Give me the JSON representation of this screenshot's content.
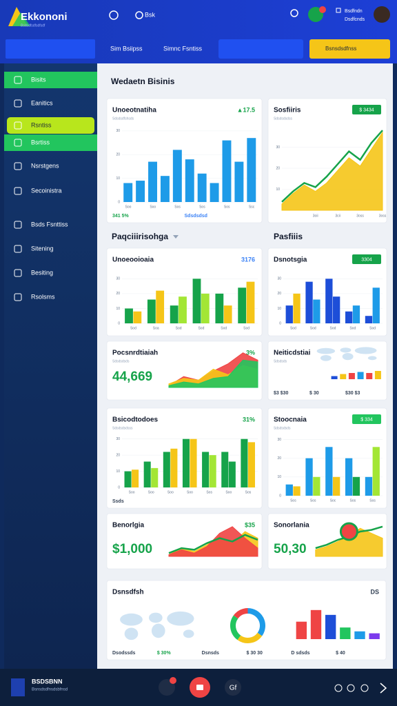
{
  "header": {
    "logo": "Ekkononi",
    "tagline": "Bsdsdfsdfsdfsdf",
    "search_hint": "Bsk",
    "nav": [
      "Sim Bsiipss",
      "Simnc Fsntiss"
    ],
    "button": "Bsnsdsdfnss",
    "user": [
      "Bsdfndn",
      "Dsdfcnds"
    ]
  },
  "sidebar": [
    {
      "label": "Bisits",
      "highlight": "#22c55e"
    },
    {
      "label": "Eanitics"
    },
    {
      "label": "Rsntiss",
      "highlight": "#b8e61c"
    },
    {
      "label": "Bsrtiss",
      "highlight": "#22c55e"
    },
    {
      "label": "Nsrstgens"
    },
    {
      "label": "Secoinistra"
    },
    {
      "label": "Bsds Fsnttiss"
    },
    {
      "label": "Sitening"
    },
    {
      "label": "Besiting"
    },
    {
      "label": "Rsolsms"
    }
  ],
  "main_title": "Wedaetn Bisinis",
  "sections": [
    "Paqciiirisohga",
    "Pasfiiis"
  ],
  "cards": [
    {
      "title": "Unoeotnatiha",
      "subtitle": "Sdsdsdfshsds",
      "badge": {
        "text": "▲17.5",
        "style": "text",
        "color": "#16a34a"
      },
      "charts": [
        {
          "type": "bar",
          "ylim": [
            0,
            32
          ],
          "yticks": [
            0,
            10,
            20,
            30
          ],
          "categories": [
            "Soo",
            null,
            "Soo",
            null,
            "Sos",
            null,
            "Sos",
            null,
            "Sos",
            null,
            "Ssc"
          ],
          "series": [
            {
              "colors": [
                "#1e9be8"
              ],
              "values": [
                8,
                9,
                17,
                11,
                22,
                18,
                12,
                8,
                26,
                17,
                27
              ]
            }
          ]
        }
      ],
      "footer": [
        {
          "text": "341 5%",
          "color": "#16a34a"
        },
        {
          "text": "Sdsdsdsd",
          "color": "#3b82f6"
        }
      ]
    },
    {
      "title": "Sosfiiris",
      "subtitle": "Sdsdsdsdss",
      "badge": {
        "text": "$ 3434",
        "style": "pill",
        "color": "#16a34a"
      },
      "charts": [
        {
          "type": "area",
          "ylim": [
            0,
            40
          ],
          "yticks": [
            10,
            20,
            30
          ],
          "categories": [
            null,
            null,
            null,
            "3oii",
            null,
            "3cii",
            null,
            "3oss",
            null,
            "3oss"
          ],
          "series": [
            {
              "style": "area",
              "color": "#f5c518",
              "values": [
                3,
                8,
                12,
                9,
                13,
                19,
                25,
                21,
                29,
                37
              ]
            },
            {
              "style": "line",
              "color": "#16a34a",
              "values": [
                4,
                9,
                13,
                11,
                16,
                22,
                28,
                24,
                32,
                38
              ]
            }
          ]
        }
      ]
    },
    {
      "title": "Unoeooioaia",
      "badge": {
        "text": "3176",
        "style": "text",
        "color": "#3b82f6"
      },
      "charts": [
        {
          "type": "bar",
          "ylim": [
            0,
            32
          ],
          "yticks": [
            0,
            10,
            20,
            30
          ],
          "categories": [
            "Sod",
            "Soa",
            "Sod",
            "Sod",
            "Sod",
            "Sod"
          ],
          "series": [
            {
              "colors": [
                "#16a34a"
              ],
              "values": [
                10,
                16,
                12,
                30,
                20,
                24
              ]
            },
            {
              "colors": [
                "#f5c518",
                "#f5c518",
                "#a3e635",
                "#a3e635",
                "#f5c518",
                "#f5c518"
              ],
              "values": [
                8,
                22,
                18,
                20,
                12,
                28
              ]
            }
          ]
        }
      ]
    },
    {
      "title": "Dsnotsgia",
      "badge": {
        "text": "3304",
        "style": "pill",
        "color": "#16a34a"
      },
      "charts": [
        {
          "type": "bar",
          "ylim": [
            0,
            32
          ],
          "yticks": [
            0,
            10,
            20,
            30
          ],
          "categories": [
            "Sod",
            "Sod",
            "Sod",
            "Sod",
            "Sod"
          ],
          "series": [
            {
              "colors": [
                "#1d4ed8"
              ],
              "values": [
                12,
                28,
                30,
                8,
                5
              ]
            },
            {
              "colors": [
                "#f5c518",
                "#1e9be8",
                "#1d4ed8",
                "#1e9be8",
                "#1e9be8"
              ],
              "values": [
                20,
                16,
                18,
                12,
                24
              ]
            }
          ]
        }
      ]
    },
    {
      "title": "Pocsnrdtiaiah",
      "subtitle": "Sdsdsdsds",
      "badge": {
        "text": "3%",
        "style": "text",
        "color": "#16a34a"
      },
      "value": "44,669",
      "charts": [
        {
          "type": "area",
          "ylim": [
            0,
            40
          ],
          "categories": [
            null,
            null,
            null,
            null,
            null,
            null,
            null
          ],
          "series": [
            {
              "style": "area",
              "color": "#ef4444",
              "values": [
                2,
                12,
                8,
                18,
                26,
                38,
                30
              ]
            },
            {
              "style": "area",
              "color": "#f5c518",
              "values": [
                4,
                10,
                8,
                20,
                14,
                24,
                20
              ]
            },
            {
              "style": "area",
              "color": "#22c55e",
              "values": [
                2,
                6,
                4,
                10,
                12,
                30,
                28
              ]
            }
          ]
        }
      ]
    },
    {
      "title": "Neiticdstiai",
      "subtitle": "Sdsdsds",
      "charts": [
        {
          "type": "map"
        },
        {
          "type": "bar",
          "ylim": [
            0,
            20
          ],
          "categories": [
            null,
            null,
            null,
            null,
            null,
            null
          ],
          "series": [
            {
              "colors": [
                "#1d4ed8",
                "#f5c518",
                "#ef4444",
                "#1e9be8",
                "#ef4444",
                "#f5c518"
              ],
              "values": [
                6,
                10,
                12,
                14,
                12,
                16
              ]
            }
          ]
        }
      ],
      "footer": [
        {
          "text": "$3 $30",
          "color": "#334155"
        },
        {
          "text": "$ 30",
          "color": "#334155"
        },
        {
          "text": "$30 $3",
          "color": "#334155"
        }
      ]
    },
    {
      "title": "Bsicodtodoes",
      "subtitle": "Sdsdsdsdsss",
      "badge": {
        "text": "31%",
        "style": "text",
        "color": "#16a34a"
      },
      "charts": [
        {
          "type": "bar",
          "ylim": [
            0,
            32
          ],
          "yticks": [
            0,
            10,
            20,
            30
          ],
          "categories": [
            "Soo",
            "Soo",
            "Soo",
            "Soo",
            "Sos",
            "Soo",
            "Sos"
          ],
          "series": [
            {
              "colors": [
                "#16a34a"
              ],
              "values": [
                10,
                16,
                22,
                30,
                22,
                22,
                30
              ]
            },
            {
              "colors": [
                "#f5c518",
                "#a3e635",
                "#f5c518",
                "#f5c518",
                "#a3e635",
                "#16a34a",
                "#f5c518"
              ],
              "values": [
                11,
                12,
                24,
                30,
                20,
                16,
                28
              ]
            }
          ]
        }
      ],
      "footer": [
        {
          "text": "Ssds",
          "color": "#334155"
        }
      ]
    },
    {
      "title": "Stoocnaia",
      "subtitle": "Sdsdsdsds",
      "badge": {
        "text": "$ 334",
        "style": "pill",
        "color": "#22c55e"
      },
      "charts": [
        {
          "type": "bar",
          "ylim": [
            0,
            32
          ],
          "yticks": [
            0,
            10,
            20,
            30
          ],
          "categories": [
            "Sos",
            "Sos",
            "Soc",
            "Sos",
            "Sos"
          ],
          "series": [
            {
              "colors": [
                "#1e9be8"
              ],
              "values": [
                6,
                20,
                26,
                20,
                10
              ]
            },
            {
              "colors": [
                "#f5c518",
                "#a3e635",
                "#f5c518",
                "#16a34a",
                "#a3e635"
              ],
              "values": [
                5,
                10,
                10,
                10,
                26
              ]
            }
          ]
        }
      ]
    },
    {
      "title": "Benorlgia",
      "value": "$1,000",
      "badge": {
        "text": "$35",
        "style": "text",
        "color": "#16a34a"
      },
      "charts": [
        {
          "type": "area",
          "ylim": [
            0,
            40
          ],
          "categories": [
            null,
            null,
            null,
            null,
            null,
            null,
            null,
            null
          ],
          "series": [
            {
              "style": "area",
              "color": "#f5c518",
              "values": [
                2,
                10,
                6,
                14,
                24,
                16,
                30,
                22
              ]
            },
            {
              "style": "area",
              "color": "#ef4444",
              "values": [
                2,
                8,
                4,
                12,
                28,
                36,
                22,
                10
              ]
            },
            {
              "style": "line",
              "color": "#16a34a",
              "values": [
                4,
                10,
                8,
                16,
                22,
                18,
                26,
                20
              ]
            }
          ]
        }
      ]
    },
    {
      "title": "Sonorlania",
      "value": "50,30",
      "charts": [
        {
          "type": "area",
          "ylim": [
            0,
            40
          ],
          "categories": [
            null,
            null,
            null,
            null,
            null,
            null,
            null
          ],
          "series": [
            {
              "style": "area",
              "color": "#f5c518",
              "values": [
                8,
                12,
                18,
                24,
                34,
                28,
                22
              ]
            },
            {
              "style": "line",
              "color": "#16a34a",
              "values": [
                10,
                14,
                20,
                24,
                30,
                32,
                36
              ]
            },
            {
              "style": "dot",
              "color": "#ef4444",
              "values": [
                null,
                null,
                null,
                30,
                null,
                null,
                null
              ]
            }
          ]
        }
      ]
    },
    {
      "title": "Dsnsdfsh",
      "badge": {
        "text": "DS",
        "style": "text",
        "color": "#334155"
      },
      "charts": [
        {
          "type": "map"
        },
        {
          "type": "donut",
          "values": [
            35,
            25,
            25,
            15
          ],
          "colors": [
            "#1e9be8",
            "#f5c518",
            "#22c55e",
            "#ef4444"
          ]
        },
        {
          "type": "bar",
          "ylim": [
            0,
            32
          ],
          "categories": [
            null,
            null,
            null,
            null,
            null,
            null
          ],
          "series": [
            {
              "colors": [
                "#ef4444",
                "#ef4444",
                "#1d4ed8",
                "#22c55e",
                "#1e9be8",
                "#7c3aed"
              ],
              "values": [
                18,
                30,
                25,
                12,
                8,
                6
              ]
            }
          ]
        }
      ],
      "footer": [
        {
          "text": "Dsodssds",
          "color": "#334155"
        },
        {
          "text": "$ 30%",
          "color": "#16a34a"
        },
        {
          "text": "Dsnsds",
          "color": "#334155"
        },
        {
          "text": "$ 30 30",
          "color": "#334155"
        },
        {
          "text": "D sdsds",
          "color": "#334155"
        },
        {
          "text": "$ 40",
          "color": "#334155"
        }
      ]
    }
  ],
  "bottom_bar": {
    "title": "BSDSBNN",
    "subtitle": "Bsnsdsdfnsdsbfnsd",
    "icon_text": "Gf"
  }
}
